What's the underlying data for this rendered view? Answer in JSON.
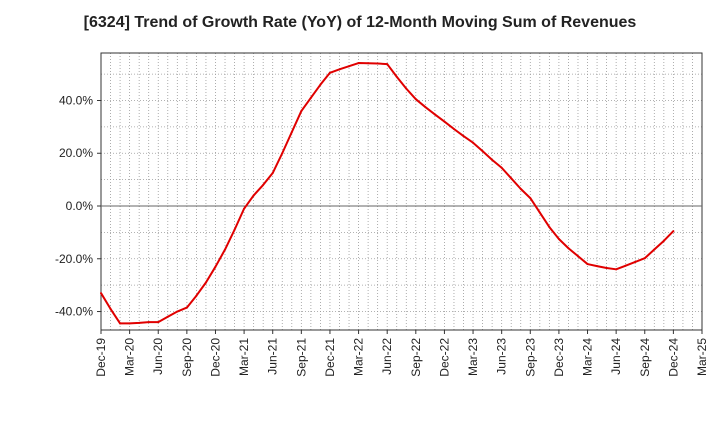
{
  "chart_data": {
    "type": "line",
    "title": "[6324]  Trend of Growth Rate (YoY) of 12-Month Moving Sum of Revenues",
    "xlabel": "",
    "ylabel": "",
    "ylim": [
      -47,
      58
    ],
    "grid": true,
    "legend": "none",
    "y_ticks": [
      -40,
      -20,
      0,
      20,
      40
    ],
    "y_tick_labels": [
      "-40.0%",
      "-20.0%",
      "0.0%",
      "20.0%",
      "40.0%"
    ],
    "x_tick_labels": [
      "Dec-19",
      "Mar-20",
      "Jun-20",
      "Sep-20",
      "Dec-20",
      "Mar-21",
      "Jun-21",
      "Sep-21",
      "Dec-21",
      "Mar-22",
      "Jun-22",
      "Sep-22",
      "Dec-22",
      "Mar-23",
      "Jun-23",
      "Sep-23",
      "Dec-23",
      "Mar-24",
      "Jun-24",
      "Sep-24",
      "Dec-24",
      "Mar-25"
    ],
    "series": [
      {
        "color": "#e00000",
        "x": [
          "Dec-19",
          "Jan-20",
          "Feb-20",
          "Mar-20",
          "Apr-20",
          "May-20",
          "Jun-20",
          "Jul-20",
          "Aug-20",
          "Sep-20",
          "Oct-20",
          "Nov-20",
          "Dec-20",
          "Jan-21",
          "Feb-21",
          "Mar-21",
          "Apr-21",
          "May-21",
          "Jun-21",
          "Jul-21",
          "Aug-21",
          "Sep-21",
          "Oct-21",
          "Nov-21",
          "Dec-21",
          "Jan-22",
          "Feb-22",
          "Mar-22",
          "Apr-22",
          "May-22",
          "Jun-22",
          "Jul-22",
          "Aug-22",
          "Sep-22",
          "Oct-22",
          "Nov-22",
          "Dec-22",
          "Jan-23",
          "Feb-23",
          "Mar-23",
          "Apr-23",
          "May-23",
          "Jun-23",
          "Jul-23",
          "Aug-23",
          "Sep-23",
          "Oct-23",
          "Nov-23",
          "Dec-23",
          "Jan-24",
          "Feb-24",
          "Mar-24",
          "Apr-24",
          "May-24",
          "Jun-24",
          "Jul-24",
          "Aug-24",
          "Sep-24",
          "Oct-24",
          "Nov-24",
          "Dec-24"
        ],
        "values": [
          -33,
          -39,
          -44.5,
          -44.5,
          -44.3,
          -44,
          -44,
          -42,
          -40,
          -38.5,
          -34,
          -29,
          -23,
          -16.5,
          -9,
          -1,
          4,
          8,
          12.5,
          20,
          28,
          36,
          41,
          46,
          50.5,
          51.8,
          53,
          54.2,
          54.1,
          54,
          53.8,
          49,
          44.5,
          40.5,
          37.5,
          34.7,
          32,
          29.2,
          26.5,
          24,
          20.8,
          17.5,
          14.5,
          10.5,
          6.5,
          3,
          -2.5,
          -8,
          -12.5,
          -16,
          -19,
          -22,
          -22.8,
          -23.5,
          -24,
          -22.6,
          -21.2,
          -19.8,
          -16.5,
          -13.2,
          -9.5
        ]
      }
    ]
  }
}
